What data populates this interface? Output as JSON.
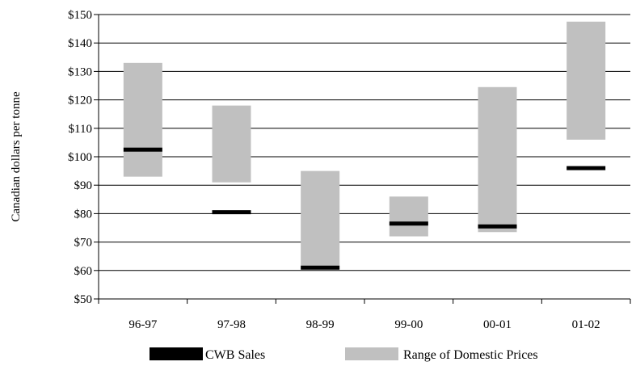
{
  "chart_data": {
    "type": "bar",
    "subtype": "floating-range-with-marker",
    "ylabel": "Canadian dollars per tonne",
    "xlabel": "",
    "ylim": [
      50,
      150
    ],
    "yticks": [
      50,
      60,
      70,
      80,
      90,
      100,
      110,
      120,
      130,
      140,
      150
    ],
    "ytick_labels": [
      "$50",
      "$60",
      "$70",
      "$80",
      "$90",
      "$100",
      "$110",
      "$120",
      "$130",
      "$140",
      "$150"
    ],
    "categories": [
      "96-97",
      "97-98",
      "98-99",
      "99-00",
      "00-01",
      "01-02"
    ],
    "grid": true,
    "legend_position": "bottom",
    "series": [
      {
        "name": "CWB Sales",
        "kind": "marker",
        "color": "#000000",
        "values": [
          102.5,
          80.5,
          61,
          76.5,
          75.5,
          96
        ]
      },
      {
        "name": "Range of Domestic Prices",
        "kind": "range",
        "color": "#c0c0c0",
        "low": [
          93,
          91,
          60.5,
          72,
          73.5,
          106
        ],
        "high": [
          133,
          118,
          95,
          86,
          124.5,
          147.5
        ]
      }
    ]
  }
}
